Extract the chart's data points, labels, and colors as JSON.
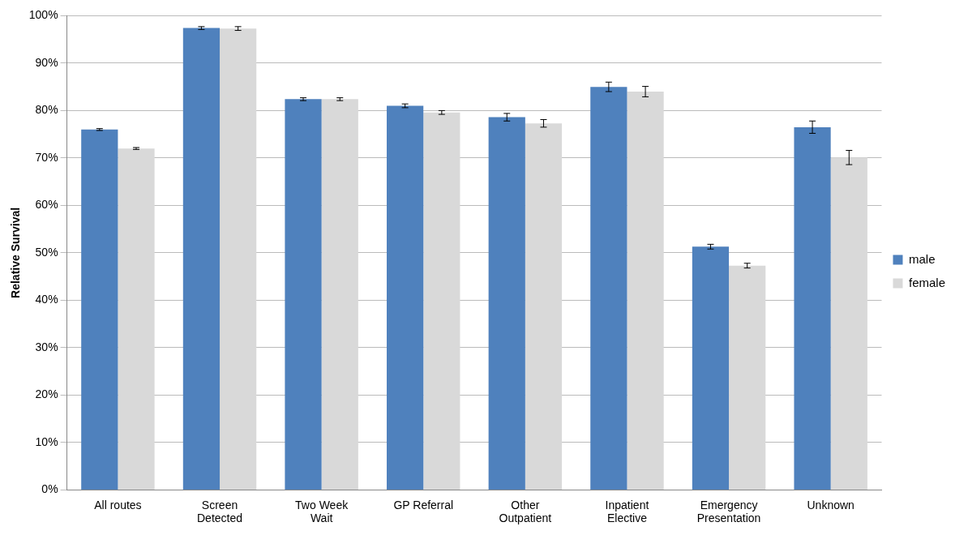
{
  "chart_data": {
    "type": "bar",
    "ylabel": "Relative Survival",
    "categories": [
      "All routes",
      "Screen Detected",
      "Two Week Wait",
      "GP Referral",
      "Other Outpatient",
      "Inpatient Elective",
      "Emergency Presentation",
      "Unknown"
    ],
    "series": [
      {
        "name": "male",
        "color": "#4f81bd",
        "values": [
          76.0,
          97.4,
          82.4,
          81.0,
          78.6,
          85.0,
          51.3,
          76.5
        ],
        "errors": [
          0.2,
          0.3,
          0.3,
          0.4,
          0.8,
          1.0,
          0.5,
          1.3
        ]
      },
      {
        "name": "female",
        "color": "#d9d9d9",
        "values": [
          72.0,
          97.3,
          82.4,
          79.6,
          77.3,
          84.0,
          47.3,
          70.1
        ],
        "errors": [
          0.2,
          0.4,
          0.3,
          0.4,
          0.8,
          1.1,
          0.5,
          1.5
        ]
      }
    ],
    "ylim": [
      0,
      100
    ],
    "yticks": [
      {
        "value": 0,
        "label": "0%"
      },
      {
        "value": 10,
        "label": "10%"
      },
      {
        "value": 20,
        "label": "20%"
      },
      {
        "value": 30,
        "label": "30%"
      },
      {
        "value": 40,
        "label": "40%"
      },
      {
        "value": 50,
        "label": "50%"
      },
      {
        "value": 60,
        "label": "60%"
      },
      {
        "value": 70,
        "label": "70%"
      },
      {
        "value": 80,
        "label": "80%"
      },
      {
        "value": 90,
        "label": "90%"
      },
      {
        "value": 100,
        "label": "100%"
      }
    ],
    "grid": "y",
    "legend": "right"
  }
}
